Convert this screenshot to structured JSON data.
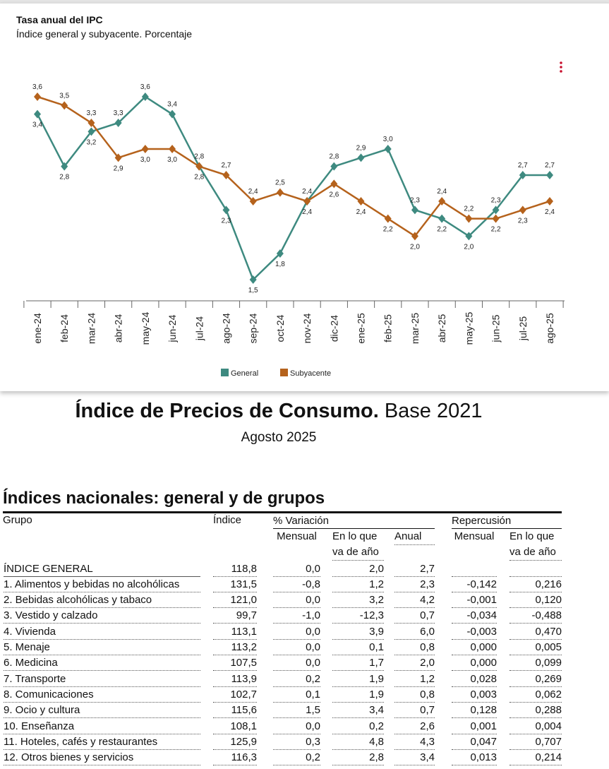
{
  "chart_data": {
    "type": "line",
    "title": "Tasa anual del IPC",
    "subtitle": "Índice general y subyacente. Porcentaje",
    "categories": [
      "ene-24",
      "feb-24",
      "mar-24",
      "abr-24",
      "may-24",
      "jun-24",
      "jul-24",
      "ago-24",
      "sep-24",
      "oct-24",
      "nov-24",
      "dic-24",
      "ene-25",
      "feb-25",
      "mar-25",
      "abr-25",
      "may-25",
      "jun-25",
      "jul-25",
      "ago-25"
    ],
    "series": [
      {
        "name": "General",
        "color": "#3e8a80",
        "values": [
          3.4,
          2.8,
          3.2,
          3.3,
          3.6,
          3.4,
          2.8,
          2.3,
          1.5,
          1.8,
          2.4,
          2.8,
          2.9,
          3.0,
          2.3,
          2.2,
          2.0,
          2.3,
          2.7,
          2.7
        ],
        "value_labels": [
          "3,4",
          "2,8",
          "3,2",
          "3,3",
          "3,6",
          "3,4",
          "2,8",
          "2,3",
          "1,5",
          "1,8",
          "2,4",
          "2,8",
          "2,9",
          "3,0",
          "2,3",
          "2,2",
          "2,0",
          "2,3",
          "2,7",
          "2,7"
        ]
      },
      {
        "name": "Subyacente",
        "color": "#b5621c",
        "values": [
          3.6,
          3.5,
          3.3,
          2.9,
          3.0,
          3.0,
          2.8,
          2.7,
          2.4,
          2.5,
          2.4,
          2.6,
          2.4,
          2.2,
          2.0,
          2.4,
          2.2,
          2.2,
          2.3,
          2.4
        ],
        "value_labels": [
          "3,6",
          "3,5",
          "3,3",
          "2,9",
          "3,0",
          "3,0",
          "2,8",
          "2,7",
          "2,4",
          "2,5",
          "2,4",
          "2,6",
          "2,4",
          "2,2",
          "2,0",
          "2,4",
          "2,2",
          "2,2",
          "2,3",
          "2,4"
        ]
      }
    ]
  },
  "heading": {
    "bold": "Índice de Precios de Consumo.",
    "rest": "Base 2021",
    "date": "Agosto 2025"
  },
  "table": {
    "title": "Índices nacionales: general y de grupos",
    "headers": {
      "grupo": "Grupo",
      "indice": "Índice",
      "variacion": "% Variación",
      "repercusion": "Repercusión",
      "sub": [
        "Mensual",
        "En lo que va de año",
        "Anual",
        "Mensual",
        "En lo que va de año"
      ]
    },
    "rows": [
      [
        "ÍNDICE GENERAL",
        "118,8",
        "0,0",
        "2,0",
        "2,7"
      ],
      [
        "1. Alimentos y bebidas no alcohólicas",
        "131,5",
        "-0,8",
        "1,2",
        "2,3",
        "-0,142",
        "0,216"
      ],
      [
        "2. Bebidas alcohólicas y tabaco",
        "121,0",
        "0,0",
        "3,2",
        "4,2",
        "-0,001",
        "0,120"
      ],
      [
        "3. Vestido y calzado",
        "99,7",
        "-1,0",
        "-12,3",
        "0,7",
        "-0,034",
        "-0,488"
      ],
      [
        "4. Vivienda",
        "113,1",
        "0,0",
        "3,9",
        "6,0",
        "-0,003",
        "0,470"
      ],
      [
        "5. Menaje",
        "113,2",
        "0,0",
        "0,1",
        "0,8",
        "0,000",
        "0,005"
      ],
      [
        "6. Medicina",
        "107,5",
        "0,0",
        "1,7",
        "2,0",
        "0,000",
        "0,099"
      ],
      [
        "7. Transporte",
        "113,9",
        "0,2",
        "1,9",
        "1,2",
        "0,028",
        "0,269"
      ],
      [
        "8. Comunicaciones",
        "102,7",
        "0,1",
        "1,9",
        "0,8",
        "0,003",
        "0,062"
      ],
      [
        "9. Ocio y cultura",
        "115,6",
        "1,5",
        "3,4",
        "0,7",
        "0,128",
        "0,288"
      ],
      [
        "10. Enseñanza",
        "108,1",
        "0,0",
        "0,2",
        "2,6",
        "0,001",
        "0,004"
      ],
      [
        "11. Hoteles, cafés y restaurantes",
        "125,9",
        "0,3",
        "4,8",
        "4,3",
        "0,047",
        "0,707"
      ],
      [
        "12. Otros bienes y servicios",
        "116,3",
        "0,2",
        "2,8",
        "3,4",
        "0,013",
        "0,214"
      ]
    ]
  }
}
